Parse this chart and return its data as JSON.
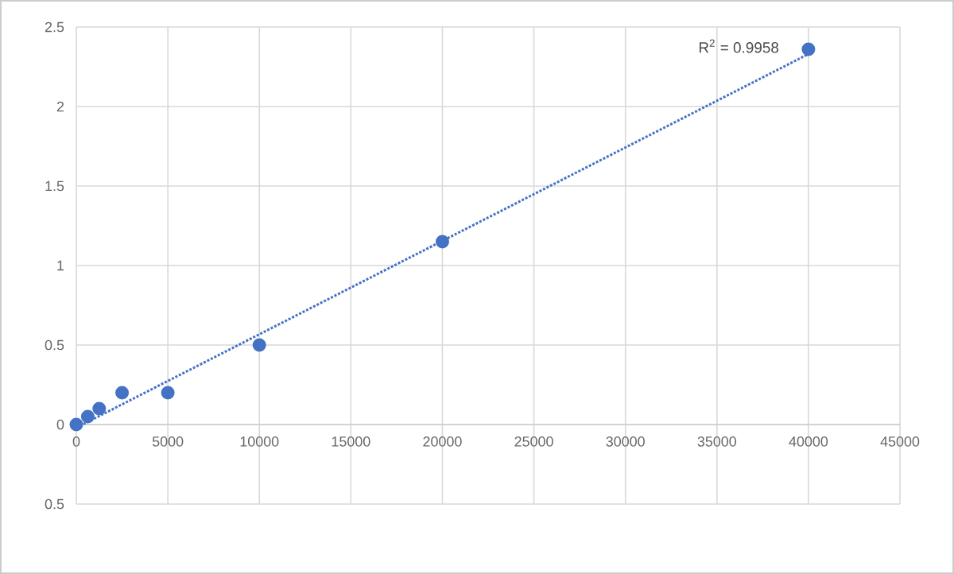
{
  "chart_data": {
    "type": "scatter",
    "x": [
      0,
      625,
      1250,
      2500,
      5000,
      10000,
      20000,
      40000
    ],
    "series": [
      {
        "color": "#4472c4",
        "values": [
          0,
          0.05,
          0.1,
          0.2,
          0.2,
          0.5,
          1.15,
          2.36
        ]
      },
      {
        "type": "line",
        "x": [
          0,
          40000
        ],
        "values": [
          -0.02,
          2.33
        ],
        "color": "#4472c4",
        "line_style": "dotted",
        "marker": "none"
      }
    ],
    "xlim": [
      0,
      45000
    ],
    "xticks": [
      0,
      5000,
      10000,
      15000,
      20000,
      25000,
      30000,
      35000,
      40000,
      45000
    ],
    "ylim": [
      -0.5,
      2.5
    ],
    "yticks": [
      {
        "value": -0.5,
        "label": "0.5"
      },
      0,
      0.5,
      1,
      1.5,
      2,
      2.5
    ],
    "grid": true,
    "marker": "circle",
    "annotations": [
      "R$^{2}$ = 0.9958"
    ]
  }
}
